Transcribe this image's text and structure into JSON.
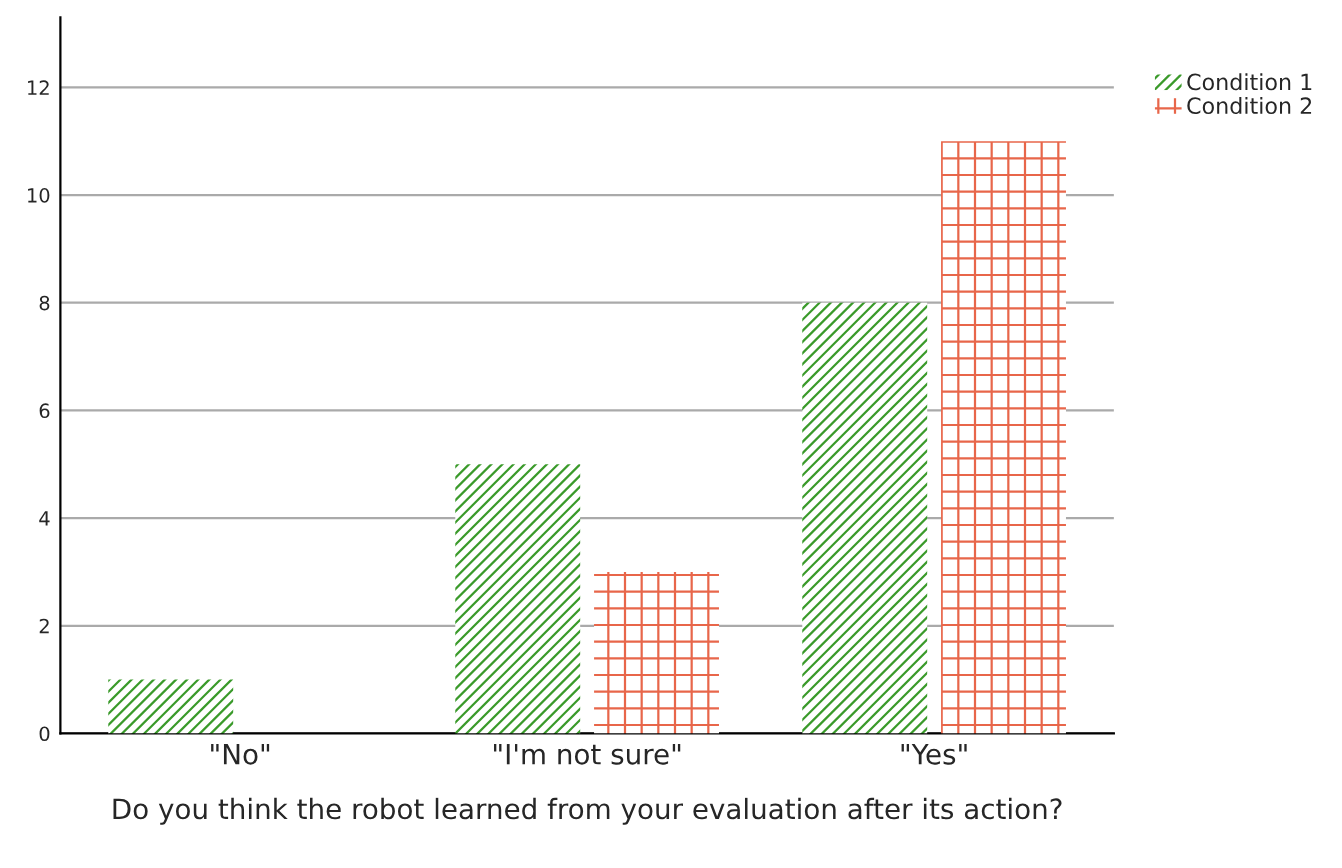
{
  "chart_data": {
    "type": "bar",
    "xlabel": "Do you think the robot learned from your evaluation after its action?",
    "categories": [
      "\"No\"",
      "\"I'm not sure\"",
      "\"Yes\""
    ],
    "series": [
      {
        "name": "Condition 1",
        "color": "#3a9a2a",
        "values": [
          1,
          5,
          8
        ]
      },
      {
        "name": "Condition 2",
        "color": "#e8664a",
        "values": [
          0,
          3,
          11
        ]
      }
    ],
    "ylim": [
      0,
      13.3
    ],
    "yticks": [
      0,
      2,
      4,
      6,
      8,
      10,
      12
    ],
    "grid": "y",
    "legend": "top right"
  }
}
